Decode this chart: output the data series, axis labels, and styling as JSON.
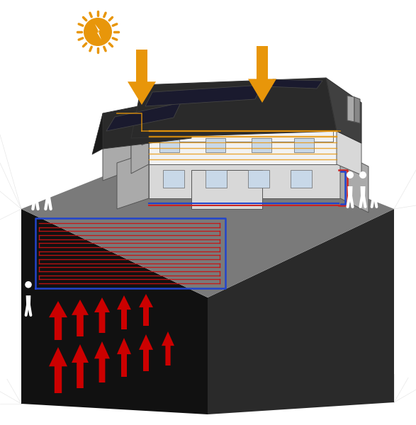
{
  "bg_color": "#ffffff",
  "ground_top_color": "#7a7a7a",
  "ground_left_color": "#111111",
  "ground_right_color": "#2a2a2a",
  "ground_front_color": "#1a1a1a",
  "loop_red": "#cc1111",
  "loop_blue": "#2244cc",
  "arrow_red": "#cc0000",
  "arrow_orange": "#e8960a",
  "sun_color": "#e8960a",
  "house_white": "#f2f2f2",
  "house_lt_gray": "#d8d8d8",
  "house_md_gray": "#aaaaaa",
  "house_dk_gray": "#888888",
  "roof_dark": "#2a2a2a",
  "roof_mid": "#404040",
  "solar_dark": "#1a1a2e",
  "pipe_orange": "#e8960a",
  "pipe_red": "#cc2222",
  "pipe_blue": "#2244cc",
  "person_white": "#ffffff",
  "line_gray": "#bbbbbb",
  "outline": "#555555",
  "outline_dk": "#333333"
}
